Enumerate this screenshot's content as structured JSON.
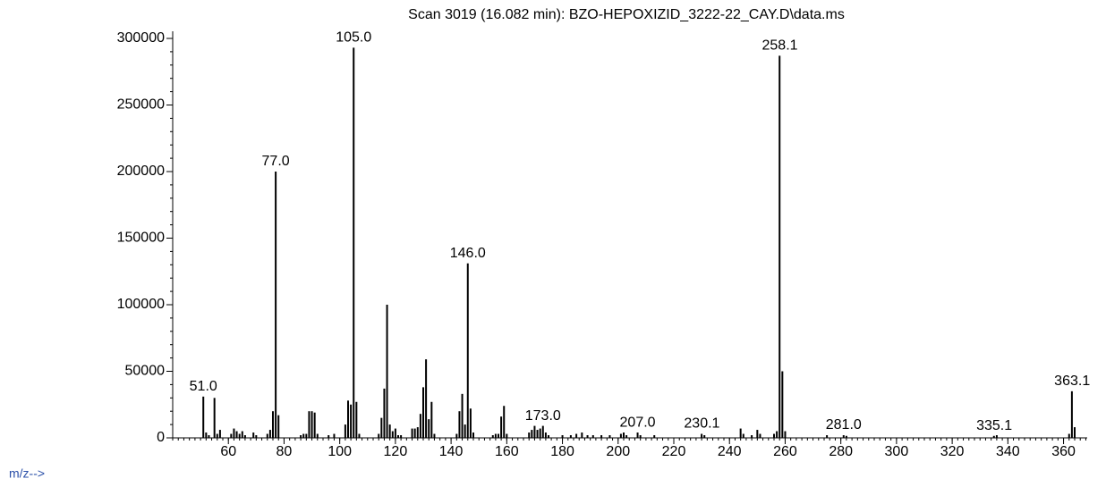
{
  "chart_data": {
    "type": "bar",
    "title": "Scan 3019 (16.082 min): BZO-HEPOXIZID_3222-22_CAY.D\\data.ms",
    "x_label": "m/z-->",
    "color": "#000000",
    "x": [
      51,
      52,
      53,
      55,
      56,
      57,
      61,
      62,
      63,
      64,
      65,
      66,
      69,
      70,
      74,
      75,
      76,
      77,
      78,
      86,
      87,
      88,
      89,
      90,
      91,
      92,
      96,
      98,
      102,
      103,
      104,
      105,
      106,
      107,
      114,
      115,
      116,
      117,
      118,
      119,
      120,
      121,
      122,
      126,
      127,
      128,
      129,
      130,
      131,
      132,
      133,
      134,
      142,
      143,
      144,
      145,
      146,
      147,
      148,
      155,
      156,
      157,
      158,
      159,
      160,
      168,
      169,
      170,
      171,
      172,
      173,
      174,
      175,
      180,
      183,
      185,
      187,
      189,
      191,
      194,
      197,
      201,
      202,
      203,
      207,
      208,
      213,
      230,
      231,
      244,
      245,
      248,
      250,
      251,
      256,
      257,
      258,
      259,
      260,
      275,
      281,
      282,
      335,
      336,
      362,
      363,
      364
    ],
    "values": [
      31000,
      4000,
      2000,
      30000,
      3000,
      6000,
      3000,
      7000,
      5000,
      3000,
      5000,
      2000,
      4000,
      2000,
      3000,
      6000,
      20000,
      200000,
      17000,
      2000,
      3000,
      3000,
      20000,
      20000,
      19000,
      3000,
      2000,
      3000,
      10000,
      28000,
      25000,
      293000,
      27000,
      3000,
      3000,
      15000,
      37000,
      100000,
      10000,
      5000,
      7000,
      2000,
      2000,
      7000,
      7000,
      8000,
      18000,
      38000,
      59000,
      14000,
      27000,
      3000,
      3000,
      20000,
      33000,
      10000,
      131000,
      22000,
      4000,
      2000,
      3000,
      3000,
      16000,
      24000,
      3000,
      4000,
      6000,
      9000,
      6000,
      7000,
      9000,
      4000,
      2000,
      2000,
      2000,
      3000,
      4000,
      2000,
      2000,
      2000,
      2000,
      3000,
      4000,
      2000,
      4000,
      2000,
      2000,
      3000,
      2000,
      7000,
      3000,
      2000,
      6000,
      3000,
      3000,
      5000,
      287000,
      50000,
      5000,
      2000,
      2000,
      1500,
      1500,
      2000,
      3000,
      35000,
      8000
    ],
    "annotations": [
      {
        "x": 51.0,
        "text": "51.0"
      },
      {
        "x": 77.0,
        "text": "77.0"
      },
      {
        "x": 105.0,
        "text": "105.0"
      },
      {
        "x": 146.0,
        "text": "146.0"
      },
      {
        "x": 173.0,
        "text": "173.0"
      },
      {
        "x": 207.0,
        "text": "207.0"
      },
      {
        "x": 230.1,
        "text": "230.1"
      },
      {
        "x": 258.1,
        "text": "258.1"
      },
      {
        "x": 281.0,
        "text": "281.0"
      },
      {
        "x": 335.1,
        "text": "335.1"
      },
      {
        "x": 363.1,
        "text": "363.1"
      }
    ],
    "xlim": [
      40,
      368.5
    ],
    "xticks": [
      60,
      80,
      100,
      120,
      140,
      160,
      180,
      200,
      220,
      240,
      260,
      280,
      300,
      320,
      340,
      360
    ],
    "xminor": 2,
    "ylim": [
      0,
      300000
    ],
    "yticks": [
      0,
      50000,
      100000,
      150000,
      200000,
      250000,
      300000
    ],
    "yminor": 10000,
    "grid": false
  }
}
